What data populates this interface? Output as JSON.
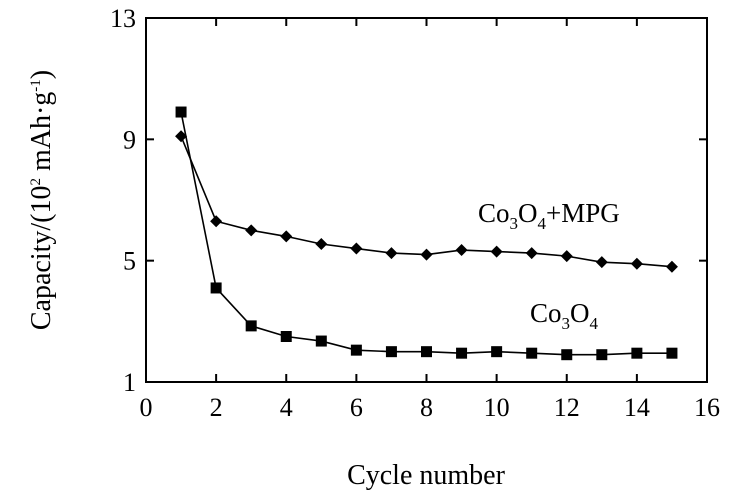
{
  "chart_data": {
    "type": "line",
    "title": "",
    "xlabel": "Cycle number",
    "ylabel": "Capacity/(10² mAh·g⁻¹)",
    "xlim": [
      0,
      16
    ],
    "ylim": [
      1,
      13
    ],
    "xticks": [
      0,
      2,
      4,
      6,
      8,
      10,
      12,
      14,
      16
    ],
    "yticks": [
      1,
      5,
      9,
      13
    ],
    "grid": false,
    "series": [
      {
        "name": "Co3O4+MPG",
        "marker": "diamond",
        "x": [
          1,
          2,
          3,
          4,
          5,
          6,
          7,
          8,
          9,
          10,
          11,
          12,
          13,
          14,
          15
        ],
        "values": [
          9.1,
          6.3,
          6.0,
          5.8,
          5.55,
          5.4,
          5.25,
          5.2,
          5.35,
          5.3,
          5.25,
          5.15,
          4.95,
          4.9,
          4.8
        ]
      },
      {
        "name": "Co3O4",
        "marker": "square",
        "x": [
          1,
          2,
          3,
          4,
          5,
          6,
          7,
          8,
          9,
          10,
          11,
          12,
          13,
          14,
          15
        ],
        "values": [
          9.9,
          4.1,
          2.85,
          2.5,
          2.35,
          2.05,
          2.0,
          2.0,
          1.95,
          2.0,
          1.95,
          1.9,
          1.9,
          1.95,
          1.95
        ]
      }
    ]
  },
  "labels": {
    "series1": {
      "base1": "Co",
      "sub1": "3",
      "base2": "O",
      "sub2": "4",
      "tail": "+MPG"
    },
    "series2": {
      "base1": "Co",
      "sub1": "3",
      "base2": "O",
      "sub2": "4"
    },
    "ylabel": {
      "pre": "Capacity/(10",
      "sup1": "2",
      "mid": " mAh·g",
      "sup2": "-1",
      "post": ")"
    }
  }
}
